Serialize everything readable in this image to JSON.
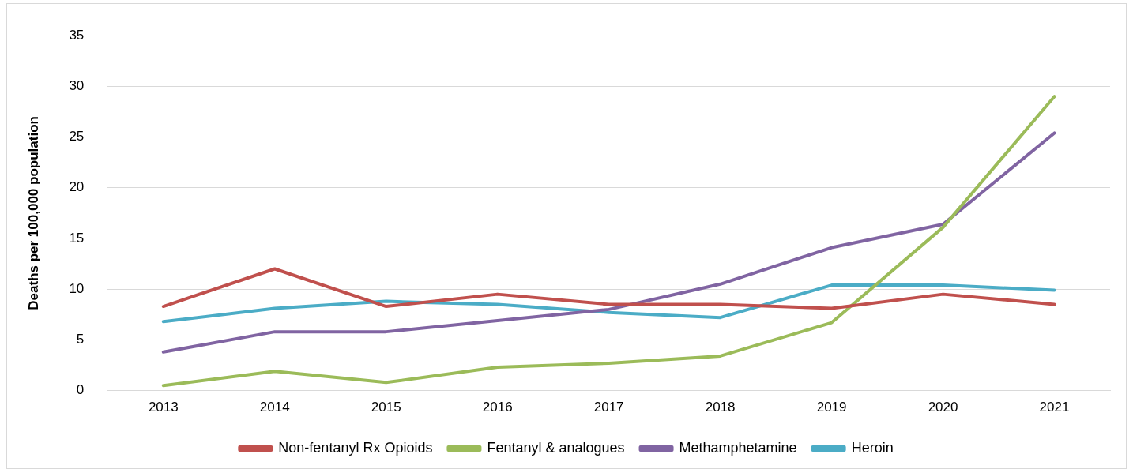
{
  "chart_data": {
    "type": "line",
    "ylabel": "Deaths per 100,000 population",
    "categories": [
      "2013",
      "2014",
      "2015",
      "2016",
      "2017",
      "2018",
      "2019",
      "2020",
      "2021"
    ],
    "series": [
      {
        "name": "Non-fentanyl Rx Opioids",
        "color": "#c0504d",
        "values": [
          8.3,
          12.0,
          8.3,
          9.5,
          8.5,
          8.5,
          8.1,
          9.5,
          8.5
        ]
      },
      {
        "name": "Fentanyl & analogues",
        "color": "#9bbb59",
        "values": [
          0.5,
          1.9,
          0.8,
          2.3,
          2.7,
          3.4,
          6.7,
          16.1,
          29.0
        ]
      },
      {
        "name": "Methamphetamine",
        "color": "#8064a2",
        "values": [
          3.8,
          5.8,
          5.8,
          6.9,
          8.0,
          10.5,
          14.1,
          16.4,
          25.4
        ]
      },
      {
        "name": "Heroin",
        "color": "#4bacc6",
        "values": [
          6.8,
          8.1,
          8.8,
          8.5,
          7.7,
          7.2,
          10.4,
          10.4,
          9.9
        ]
      }
    ],
    "ylim": [
      0,
      35
    ],
    "yticks": [
      0,
      5,
      10,
      15,
      20,
      25,
      30,
      35
    ],
    "grid": "y",
    "legend": "bottom",
    "marker": "none",
    "line_style": "solid"
  }
}
